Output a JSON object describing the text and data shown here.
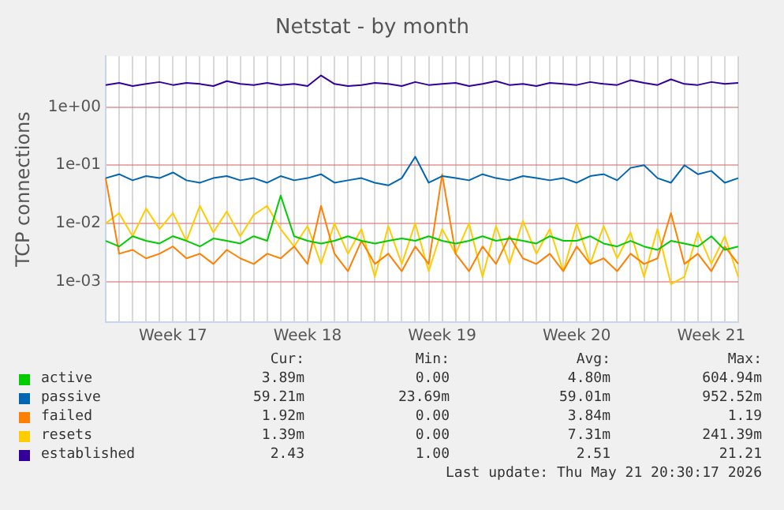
{
  "chart_data": {
    "type": "line",
    "title": "Netstat - by month",
    "ylabel": "TCP connections",
    "log": "y",
    "grid": true,
    "legend": "bottom",
    "marker": "none",
    "line_style": "solid",
    "categories": [
      null,
      null,
      null,
      null,
      null,
      "Week 17",
      null,
      null,
      null,
      null,
      null,
      null,
      null,
      null,
      null,
      "Week 18",
      null,
      null,
      null,
      null,
      null,
      null,
      null,
      null,
      null,
      "Week 19",
      null,
      null,
      null,
      null,
      null,
      null,
      null,
      null,
      null,
      "Week 20",
      null,
      null,
      null,
      null,
      null,
      null,
      null,
      null,
      null,
      "Week 21",
      null,
      null
    ],
    "ylim": [
      0.0002,
      7.5
    ],
    "yticks": [
      {
        "value": 0.001,
        "label": "1e-03"
      },
      {
        "value": 0.01,
        "label": "1e-02"
      },
      {
        "value": 0.1,
        "label": "1e-01"
      },
      {
        "value": 1,
        "label": "1e+00"
      }
    ],
    "series": [
      {
        "name": "active",
        "color": "#00cc00",
        "values": [
          0.005,
          0.004,
          0.006,
          0.005,
          0.0045,
          0.006,
          0.005,
          0.004,
          0.0055,
          0.005,
          0.0045,
          0.006,
          0.005,
          0.03,
          0.006,
          0.005,
          0.0045,
          0.005,
          0.006,
          0.005,
          0.0045,
          0.005,
          0.0055,
          0.005,
          0.006,
          0.005,
          0.0045,
          0.005,
          0.006,
          0.005,
          0.0055,
          0.005,
          0.0045,
          0.006,
          0.005,
          0.005,
          0.006,
          0.0045,
          0.004,
          0.005,
          0.004,
          0.0035,
          0.005,
          0.0045,
          0.004,
          0.006,
          0.0035,
          0.004
        ]
      },
      {
        "name": "passive",
        "color": "#0066b3",
        "values": [
          0.06,
          0.07,
          0.055,
          0.065,
          0.06,
          0.075,
          0.055,
          0.05,
          0.06,
          0.065,
          0.055,
          0.06,
          0.05,
          0.065,
          0.055,
          0.06,
          0.07,
          0.05,
          0.055,
          0.06,
          0.05,
          0.045,
          0.06,
          0.14,
          0.05,
          0.065,
          0.06,
          0.055,
          0.07,
          0.06,
          0.055,
          0.065,
          0.06,
          0.055,
          0.06,
          0.05,
          0.065,
          0.07,
          0.055,
          0.09,
          0.1,
          0.06,
          0.05,
          0.1,
          0.07,
          0.08,
          0.05,
          0.06
        ]
      },
      {
        "name": "failed",
        "color": "#ff8000",
        "values": [
          0.06,
          0.003,
          0.0035,
          0.0025,
          0.003,
          0.004,
          0.0025,
          0.003,
          0.002,
          0.0035,
          0.0025,
          0.002,
          0.003,
          0.0025,
          0.004,
          0.002,
          0.02,
          0.003,
          0.0015,
          0.005,
          0.002,
          0.003,
          0.0015,
          0.004,
          0.002,
          0.07,
          0.003,
          0.0015,
          0.004,
          0.002,
          0.006,
          0.0025,
          0.002,
          0.003,
          0.0015,
          0.004,
          0.002,
          0.0025,
          0.0015,
          0.003,
          0.002,
          0.0025,
          0.015,
          0.002,
          0.003,
          0.0015,
          0.004,
          0.002
        ]
      },
      {
        "name": "resets",
        "color": "#ffcc00",
        "values": [
          0.01,
          0.015,
          0.006,
          0.018,
          0.008,
          0.015,
          0.005,
          0.02,
          0.007,
          0.016,
          0.006,
          0.014,
          0.02,
          0.008,
          0.004,
          0.009,
          0.002,
          0.01,
          0.003,
          0.008,
          0.0012,
          0.009,
          0.002,
          0.01,
          0.0015,
          0.008,
          0.003,
          0.01,
          0.0012,
          0.009,
          0.002,
          0.011,
          0.003,
          0.008,
          0.0015,
          0.01,
          0.002,
          0.009,
          0.0025,
          0.007,
          0.0012,
          0.008,
          0.0009,
          0.0012,
          0.007,
          0.002,
          0.006,
          0.0012
        ]
      },
      {
        "name": "established",
        "color": "#330099",
        "values": [
          2.4,
          2.6,
          2.3,
          2.5,
          2.7,
          2.4,
          2.6,
          2.5,
          2.3,
          2.8,
          2.5,
          2.4,
          2.6,
          2.4,
          2.5,
          2.3,
          3.5,
          2.5,
          2.3,
          2.4,
          2.6,
          2.5,
          2.3,
          2.7,
          2.4,
          2.5,
          2.6,
          2.3,
          2.5,
          2.8,
          2.4,
          2.5,
          2.3,
          2.6,
          2.5,
          2.4,
          2.7,
          2.5,
          2.4,
          2.9,
          2.6,
          2.4,
          3.0,
          2.5,
          2.4,
          2.7,
          2.5,
          2.6
        ]
      }
    ],
    "annotations": [
      "Cur:",
      "Min:",
      "Avg:",
      "Max:",
      "3.89m",
      "0.00",
      "4.80m",
      "604.94m",
      "59.21m",
      "23.69m",
      "59.01m",
      "952.52m",
      "1.92m",
      "0.00",
      "3.84m",
      "1.19",
      "1.39m",
      "0.00",
      "7.31m",
      "241.39m",
      "2.43",
      "1.00",
      "2.51",
      "21.21",
      "Last update: Thu May 21 20:30:17 2026"
    ]
  }
}
